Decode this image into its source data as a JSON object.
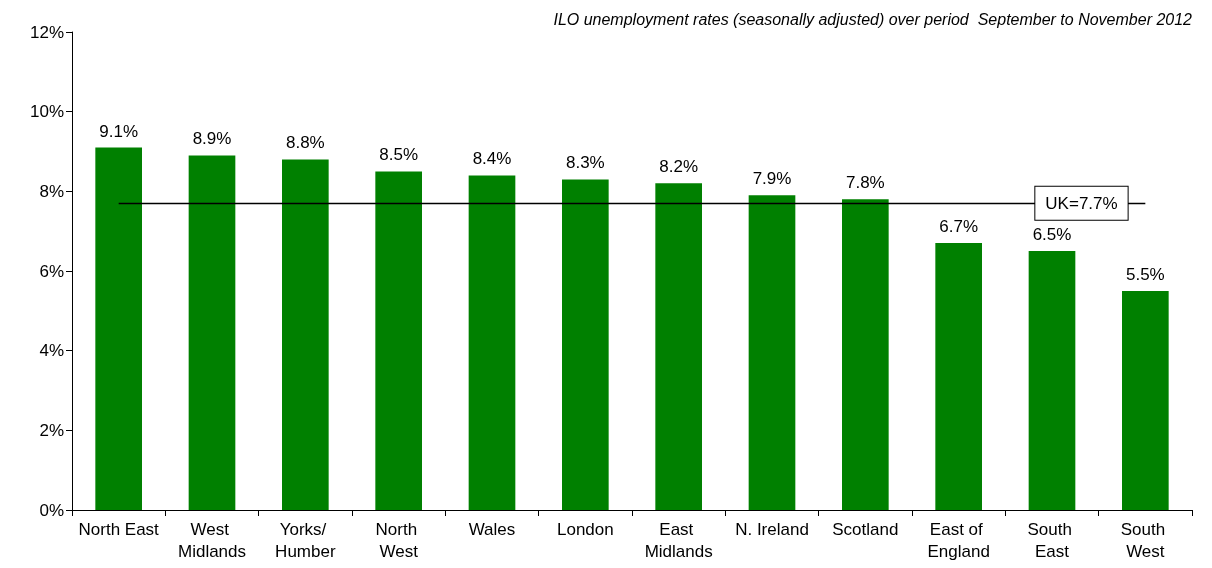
{
  "chart_data": {
    "type": "bar",
    "title": "ILO unemployment rates (seasonally adjusted) over period  September to November 2012",
    "categories": [
      "North East",
      "West Midlands",
      "Yorks/ Humber",
      "North West",
      "Wales",
      "London",
      "East Midlands",
      "N. Ireland",
      "Scotland",
      "East of England",
      "South East",
      "South West"
    ],
    "values": [
      9.1,
      8.9,
      8.8,
      8.5,
      8.4,
      8.3,
      8.2,
      7.9,
      7.8,
      6.7,
      6.5,
      5.5
    ],
    "value_labels": [
      "9.1%",
      "8.9%",
      "8.8%",
      "8.5%",
      "8.4%",
      "8.3%",
      "8.2%",
      "7.9%",
      "7.8%",
      "6.7%",
      "6.5%",
      "5.5%"
    ],
    "color": "#008000",
    "ylim": [
      0,
      12
    ],
    "yticks": [
      {
        "value": 0,
        "label": "0%"
      },
      {
        "value": 2,
        "label": "2%"
      },
      {
        "value": 4,
        "label": "4%"
      },
      {
        "value": 6,
        "label": "6%"
      },
      {
        "value": 8,
        "label": "8%"
      },
      {
        "value": 10,
        "label": "10%"
      },
      {
        "value": 12,
        "label": "12%"
      }
    ],
    "ref_lines": [
      {
        "axis": "y",
        "value": 7.7,
        "label": "UK=7.7%",
        "color": "#000000"
      }
    ],
    "grid": false
  }
}
